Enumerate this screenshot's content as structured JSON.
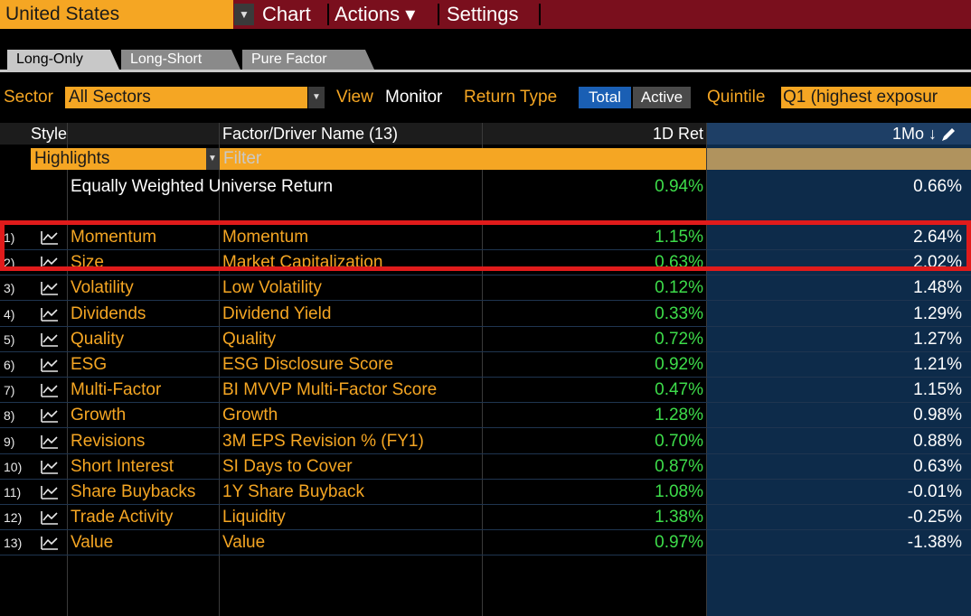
{
  "topbar": {
    "country": "United States",
    "menus": [
      "Chart",
      "Actions ▾",
      "Settings"
    ]
  },
  "tabs": [
    "Long-Only",
    "Long-Short",
    "Pure Factor"
  ],
  "filters": {
    "sector_label": "Sector",
    "sector_value": "All Sectors",
    "view_label": "View",
    "view_value": "Monitor",
    "return_type_label": "Return Type",
    "return_type_total": "Total",
    "return_type_active": "Active",
    "quintile_label": "Quintile",
    "quintile_value": "Q1 (highest exposur"
  },
  "table": {
    "headers": {
      "style": "Style",
      "factor": "Factor/Driver Name (13)",
      "ret_1d": "1D Ret",
      "ret_1mo": "1Mo ↓"
    },
    "highlights": "Highlights",
    "filter_placeholder": "Filter",
    "universe": {
      "label": "Equally Weighted Universe Return",
      "ret_1d": "0.94%",
      "ret_1mo": "0.66%"
    },
    "rows": [
      {
        "idx": "1)",
        "style": "Momentum",
        "factor": "Momentum",
        "ret_1d": "1.15%",
        "ret_1mo": "2.64%"
      },
      {
        "idx": "2)",
        "style": "Size",
        "factor": "Market Capitalization",
        "ret_1d": "0.63%",
        "ret_1mo": "2.02%"
      },
      {
        "idx": "3)",
        "style": "Volatility",
        "factor": "Low Volatility",
        "ret_1d": "0.12%",
        "ret_1mo": "1.48%"
      },
      {
        "idx": "4)",
        "style": "Dividends",
        "factor": "Dividend Yield",
        "ret_1d": "0.33%",
        "ret_1mo": "1.29%"
      },
      {
        "idx": "5)",
        "style": "Quality",
        "factor": "Quality",
        "ret_1d": "0.72%",
        "ret_1mo": "1.27%"
      },
      {
        "idx": "6)",
        "style": "ESG",
        "factor": "ESG Disclosure Score",
        "ret_1d": "0.92%",
        "ret_1mo": "1.21%"
      },
      {
        "idx": "7)",
        "style": "Multi-Factor",
        "factor": "BI MVVP Multi-Factor Score",
        "ret_1d": "0.47%",
        "ret_1mo": "1.15%"
      },
      {
        "idx": "8)",
        "style": "Growth",
        "factor": "Growth",
        "ret_1d": "1.28%",
        "ret_1mo": "0.98%"
      },
      {
        "idx": "9)",
        "style": "Revisions",
        "factor": "3M EPS Revision % (FY1)",
        "ret_1d": "0.70%",
        "ret_1mo": "0.88%"
      },
      {
        "idx": "10)",
        "style": "Short Interest",
        "factor": "SI Days to Cover",
        "ret_1d": "0.87%",
        "ret_1mo": "0.63%"
      },
      {
        "idx": "11)",
        "style": "Share Buybacks",
        "factor": "1Y Share Buyback",
        "ret_1d": "1.08%",
        "ret_1mo": "-0.01%"
      },
      {
        "idx": "12)",
        "style": "Trade Activity",
        "factor": "Liquidity",
        "ret_1d": "1.38%",
        "ret_1mo": "-0.25%"
      },
      {
        "idx": "13)",
        "style": "Value",
        "factor": "Value",
        "ret_1d": "0.97%",
        "ret_1mo": "-1.38%"
      }
    ]
  },
  "colors": {
    "accent_orange": "#f5a623",
    "menu_bar": "#7a0f1d",
    "positive_green": "#3ddc4a",
    "highlight_frame": "#e01b1b",
    "column_blue": "#0d2b4a"
  },
  "icons": {
    "row_chart": "line-chart-icon",
    "edit": "pencil-icon",
    "dropdown": "chevron-down-icon"
  }
}
